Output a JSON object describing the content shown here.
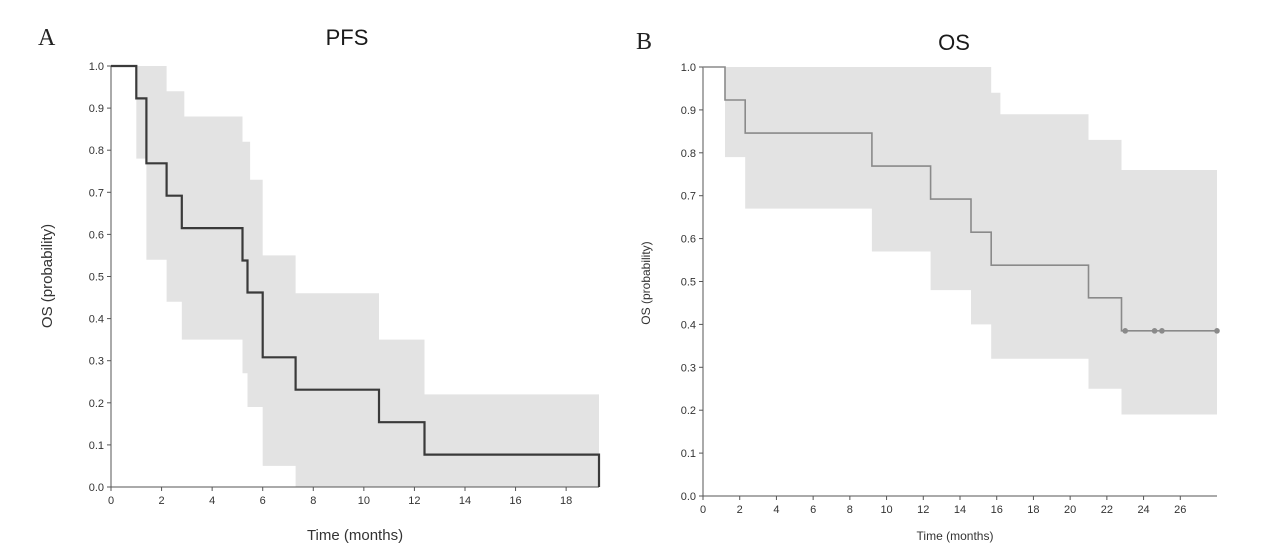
{
  "chart_data": [
    {
      "type": "line",
      "panel_label": "A",
      "title": "PFS",
      "xlabel": "Time (months)",
      "ylabel": "OS (probability)",
      "xlim": [
        0,
        19.3
      ],
      "ylim": [
        0,
        1.0
      ],
      "xticks": [
        0,
        2,
        4,
        6,
        8,
        10,
        12,
        14,
        16,
        18
      ],
      "yticks": [
        0.0,
        0.1,
        0.2,
        0.3,
        0.4,
        0.5,
        0.6,
        0.7,
        0.8,
        0.9,
        1.0
      ],
      "grid": false,
      "survival": [
        {
          "x": 0,
          "y": 1.0
        },
        {
          "x": 1.0,
          "y": 0.923
        },
        {
          "x": 1.4,
          "y": 0.769
        },
        {
          "x": 2.2,
          "y": 0.692
        },
        {
          "x": 2.8,
          "y": 0.615
        },
        {
          "x": 5.2,
          "y": 0.538
        },
        {
          "x": 5.4,
          "y": 0.462
        },
        {
          "x": 6.0,
          "y": 0.308
        },
        {
          "x": 7.3,
          "y": 0.231
        },
        {
          "x": 10.6,
          "y": 0.154
        },
        {
          "x": 12.4,
          "y": 0.077
        },
        {
          "x": 19.3,
          "y": 0.0
        }
      ],
      "ci_upper": [
        {
          "x": 0,
          "y": 1.0
        },
        {
          "x": 2.2,
          "y": 0.94
        },
        {
          "x": 2.9,
          "y": 0.88
        },
        {
          "x": 5.2,
          "y": 0.82
        },
        {
          "x": 5.5,
          "y": 0.73
        },
        {
          "x": 6.0,
          "y": 0.55
        },
        {
          "x": 7.3,
          "y": 0.46
        },
        {
          "x": 10.6,
          "y": 0.35
        },
        {
          "x": 12.4,
          "y": 0.22
        },
        {
          "x": 19.3,
          "y": 0.22
        }
      ],
      "ci_lower": [
        {
          "x": 0,
          "y": 1.0
        },
        {
          "x": 1.0,
          "y": 0.78
        },
        {
          "x": 1.4,
          "y": 0.54
        },
        {
          "x": 2.2,
          "y": 0.44
        },
        {
          "x": 2.8,
          "y": 0.35
        },
        {
          "x": 5.2,
          "y": 0.27
        },
        {
          "x": 5.4,
          "y": 0.19
        },
        {
          "x": 6.0,
          "y": 0.05
        },
        {
          "x": 7.3,
          "y": 0.0
        },
        {
          "x": 19.3,
          "y": 0.0
        }
      ]
    },
    {
      "type": "line",
      "panel_label": "B",
      "title": "OS",
      "xlabel": "Time (months)",
      "ylabel": "OS (probability)",
      "xlim": [
        0,
        28
      ],
      "ylim": [
        0,
        1.0
      ],
      "xticks": [
        0,
        2,
        4,
        6,
        8,
        10,
        12,
        14,
        16,
        18,
        20,
        22,
        24,
        26
      ],
      "yticks": [
        0.0,
        0.1,
        0.2,
        0.3,
        0.4,
        0.5,
        0.6,
        0.7,
        0.8,
        0.9,
        1.0
      ],
      "grid": false,
      "survival": [
        {
          "x": 0,
          "y": 1.0
        },
        {
          "x": 1.2,
          "y": 0.923
        },
        {
          "x": 2.3,
          "y": 0.846
        },
        {
          "x": 9.2,
          "y": 0.769
        },
        {
          "x": 12.4,
          "y": 0.692
        },
        {
          "x": 14.6,
          "y": 0.615
        },
        {
          "x": 15.7,
          "y": 0.538
        },
        {
          "x": 21.0,
          "y": 0.462
        },
        {
          "x": 22.8,
          "y": 0.385
        },
        {
          "x": 28.0,
          "y": 0.385
        }
      ],
      "censored": [
        23.0,
        24.6,
        25.0,
        28.0
      ],
      "ci_upper": [
        {
          "x": 0,
          "y": 1.0
        },
        {
          "x": 14.6,
          "y": 1.0
        },
        {
          "x": 15.7,
          "y": 0.94
        },
        {
          "x": 16.2,
          "y": 0.89
        },
        {
          "x": 21.0,
          "y": 0.83
        },
        {
          "x": 22.8,
          "y": 0.76
        },
        {
          "x": 28.0,
          "y": 0.76
        }
      ],
      "ci_lower": [
        {
          "x": 0,
          "y": 1.0
        },
        {
          "x": 1.2,
          "y": 0.79
        },
        {
          "x": 2.3,
          "y": 0.67
        },
        {
          "x": 9.2,
          "y": 0.57
        },
        {
          "x": 12.4,
          "y": 0.48
        },
        {
          "x": 14.6,
          "y": 0.4
        },
        {
          "x": 15.7,
          "y": 0.32
        },
        {
          "x": 21.0,
          "y": 0.25
        },
        {
          "x": 22.8,
          "y": 0.19
        },
        {
          "x": 28.0,
          "y": 0.19
        }
      ]
    }
  ]
}
